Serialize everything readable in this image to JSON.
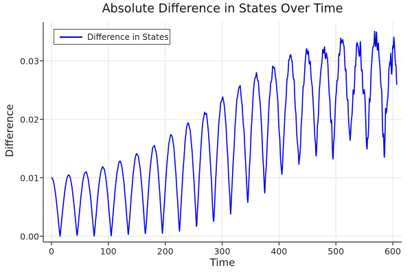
{
  "chart_data": {
    "type": "line",
    "title": "Absolute Difference in States Over Time",
    "xlabel": "Time",
    "ylabel": "Difference",
    "xlim": [
      -14.5,
      615.7
    ],
    "ylim": [
      -0.001,
      0.03665
    ],
    "x_ticks": [
      {
        "value": 0,
        "label": "0"
      },
      {
        "value": 100,
        "label": "100"
      },
      {
        "value": 200,
        "label": "200"
      },
      {
        "value": 300,
        "label": "300"
      },
      {
        "value": 400,
        "label": "400"
      },
      {
        "value": 500,
        "label": "500"
      },
      {
        "value": 600,
        "label": "600"
      }
    ],
    "y_ticks": [
      {
        "value": 0,
        "label": "0.00"
      },
      {
        "value": 0.01,
        "label": "0.01"
      },
      {
        "value": 0.02,
        "label": "0.02"
      },
      {
        "value": 0.03,
        "label": "0.03"
      }
    ],
    "grid": true,
    "legend": {
      "position": "top-left",
      "entries": [
        "Difference in States"
      ]
    },
    "series": [
      {
        "name": "Difference in States",
        "color": "#0000f0",
        "line_width": 1.6,
        "t_range": [
          0,
          607
        ],
        "t_step": 0.35,
        "arch_period": 30,
        "description": "Absolute value of the difference between two oscillating states: rectified oscillation with arches every 30 time units; upper envelope grows ~0.010 to ~0.0357, lower envelope lifts off zero after t~230 up to ~0.018, with increasing chaotic jaggedness toward large t.",
        "envelope_upper_observed": [
          [
            0,
            0.01
          ],
          [
            120,
            0.0131
          ],
          [
            210,
            0.0184
          ],
          [
            300,
            0.0239
          ],
          [
            395,
            0.0288
          ],
          [
            450,
            0.0313
          ],
          [
            505,
            0.0339
          ],
          [
            585,
            0.0357
          ]
        ],
        "envelope_lower_observed": [
          [
            15,
            0.0
          ],
          [
            200,
            0.001
          ],
          [
            257,
            0.0037
          ],
          [
            320,
            0.0059
          ],
          [
            350,
            0.0075
          ],
          [
            420,
            0.012
          ],
          [
            450,
            0.0145
          ],
          [
            600,
            0.0184
          ]
        ],
        "model": {
          "upper_env": {
            "a": 0.0228,
            "b": 0.0141,
            "m": 285,
            "s": 190
          },
          "lower_env": {
            "a": 0.0095,
            "b": 0.0095,
            "m": 390,
            "s": 120
          },
          "arch_exponent": 1.1,
          "jitter1": {
            "amp": 0.0001,
            "rate": 165,
            "p1": 8.3,
            "ph1": 0.9,
            "p2": 5.07,
            "ph2": 2.1
          },
          "jitter2": {
            "amp": 6e-05,
            "rate": 140,
            "p": 14.6,
            "ph": 1.7,
            "mod_p": 53
          },
          "clamp_min": -0.0004
        }
      }
    ]
  },
  "colors": {
    "line": "#0000f0",
    "grid": "#e6e6e6",
    "spine": "#2a2a2a",
    "tick": "#2a2a2a",
    "text": "#1a1a1a",
    "legend_border": "#4d4d4d",
    "background": "#ffffff"
  }
}
